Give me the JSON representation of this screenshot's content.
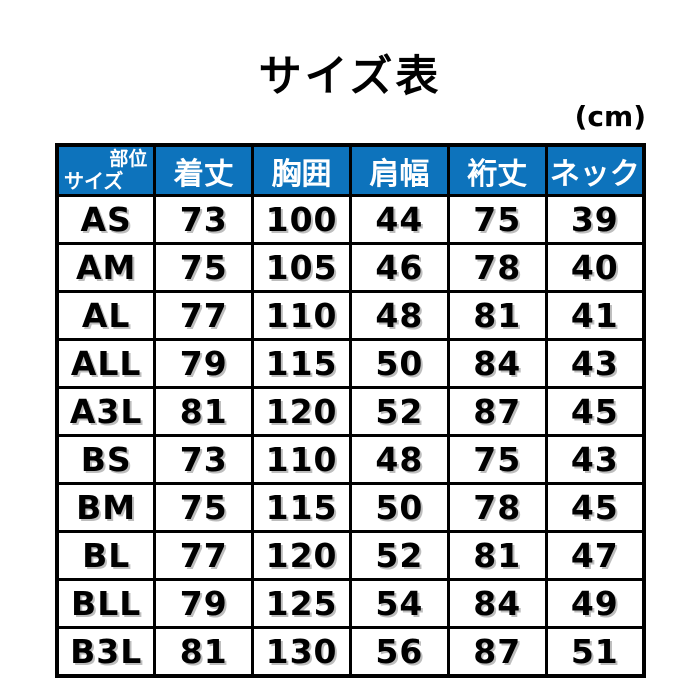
{
  "page": {
    "title": "サイズ表",
    "unit_label": "(cm)"
  },
  "colors": {
    "header_bg": "#0d73bc",
    "header_text": "#ffffff",
    "border": "#000000",
    "body_text": "#000000",
    "background": "#ffffff"
  },
  "chart_data": {
    "type": "table",
    "title": "サイズ表",
    "unit": "cm",
    "unit_label": "(cm)",
    "col_header_label": "部位",
    "row_header_label": "サイズ",
    "columns": [
      "着丈",
      "胸囲",
      "肩幅",
      "裄丈",
      "ネック"
    ],
    "rows": [
      "AS",
      "AM",
      "AL",
      "ALL",
      "A3L",
      "BS",
      "BM",
      "BL",
      "BLL",
      "B3L"
    ],
    "values": [
      [
        73,
        100,
        44,
        75,
        39
      ],
      [
        75,
        105,
        46,
        78,
        40
      ],
      [
        77,
        110,
        48,
        81,
        41
      ],
      [
        79,
        115,
        50,
        84,
        43
      ],
      [
        81,
        120,
        52,
        87,
        45
      ],
      [
        73,
        110,
        48,
        75,
        43
      ],
      [
        75,
        115,
        50,
        78,
        45
      ],
      [
        77,
        120,
        52,
        81,
        47
      ],
      [
        79,
        125,
        54,
        84,
        49
      ],
      [
        81,
        130,
        56,
        87,
        51
      ]
    ]
  }
}
